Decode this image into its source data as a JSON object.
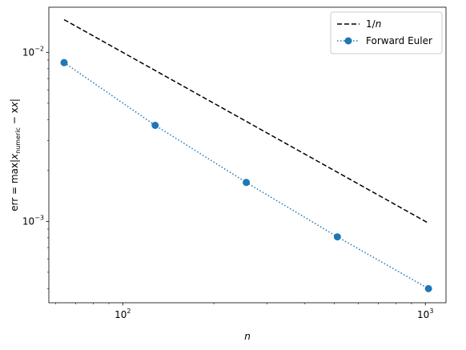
{
  "chart_data": {
    "type": "line",
    "xscale": "log",
    "yscale": "log",
    "xlim": [
      57,
      1170
    ],
    "ylim": [
      0.00033,
      0.0185
    ],
    "x_major_ticks": [
      {
        "value": 100,
        "base": "10",
        "exp": "2"
      },
      {
        "value": 1000,
        "base": "10",
        "exp": "3"
      }
    ],
    "y_major_ticks": [
      {
        "value": 0.01,
        "base": "10",
        "exp": "−2"
      },
      {
        "value": 0.001,
        "base": "10",
        "exp": "−3"
      }
    ],
    "x_minor_ticks": [
      60,
      70,
      80,
      90,
      200,
      300,
      400,
      500,
      600,
      700,
      800,
      900
    ],
    "y_minor_ticks": [
      0.0004,
      0.0005,
      0.0006,
      0.0007,
      0.0008,
      0.0009,
      0.002,
      0.003,
      0.004,
      0.005,
      0.006,
      0.007,
      0.008,
      0.009
    ],
    "xlabel": "n",
    "ylabel": {
      "lhs": "err = max",
      "var": "x",
      "subscript": "numeric",
      "rhs": " − x",
      "bar": "|"
    },
    "grid": false,
    "legend_position": "upper right",
    "series": [
      {
        "name": {
          "prefix": "1/",
          "italic": "n"
        },
        "style": "dashed",
        "color": "#000000",
        "marker": "none",
        "x": [
          64,
          1024
        ],
        "y": [
          0.015625,
          0.0009765625
        ]
      },
      {
        "name": "Forward Euler",
        "style": "dotted",
        "color": "#1f77b4",
        "marker": "circle",
        "x": [
          64,
          128,
          256,
          512,
          1024
        ],
        "y": [
          0.0087,
          0.0037,
          0.0017,
          0.00081,
          0.0004
        ]
      }
    ]
  }
}
